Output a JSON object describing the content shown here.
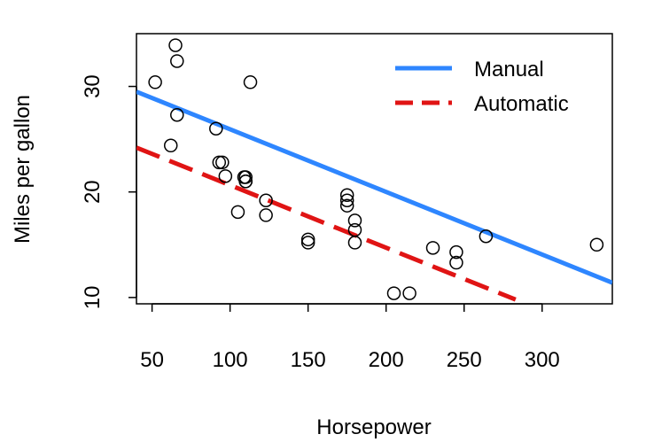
{
  "chart_data": {
    "type": "scatter",
    "xlabel": "Horsepower",
    "ylabel": "Miles per gallon",
    "xlim": [
      40,
      345
    ],
    "ylim": [
      9.4,
      35.0
    ],
    "x_ticks": [
      50,
      100,
      150,
      200,
      250,
      300
    ],
    "y_ticks": [
      10,
      20,
      30
    ],
    "grid": false,
    "legend_position": "top-right",
    "points": [
      {
        "x": 52,
        "y": 30.4
      },
      {
        "x": 62,
        "y": 24.4
      },
      {
        "x": 65,
        "y": 33.9
      },
      {
        "x": 66,
        "y": 32.4
      },
      {
        "x": 66,
        "y": 27.3
      },
      {
        "x": 91,
        "y": 26.0
      },
      {
        "x": 93,
        "y": 22.8
      },
      {
        "x": 95,
        "y": 22.8
      },
      {
        "x": 97,
        "y": 21.5
      },
      {
        "x": 105,
        "y": 18.1
      },
      {
        "x": 109,
        "y": 21.4
      },
      {
        "x": 110,
        "y": 21.0
      },
      {
        "x": 110,
        "y": 21.0
      },
      {
        "x": 110,
        "y": 21.4
      },
      {
        "x": 113,
        "y": 30.4
      },
      {
        "x": 123,
        "y": 19.2
      },
      {
        "x": 123,
        "y": 17.8
      },
      {
        "x": 150,
        "y": 15.5
      },
      {
        "x": 150,
        "y": 15.2
      },
      {
        "x": 175,
        "y": 18.7
      },
      {
        "x": 175,
        "y": 19.2
      },
      {
        "x": 175,
        "y": 19.7
      },
      {
        "x": 180,
        "y": 16.4
      },
      {
        "x": 180,
        "y": 17.3
      },
      {
        "x": 180,
        "y": 15.2
      },
      {
        "x": 205,
        "y": 10.4
      },
      {
        "x": 215,
        "y": 10.4
      },
      {
        "x": 230,
        "y": 14.7
      },
      {
        "x": 245,
        "y": 13.3
      },
      {
        "x": 245,
        "y": 14.3
      },
      {
        "x": 264,
        "y": 15.8
      },
      {
        "x": 335,
        "y": 15.0
      }
    ],
    "series": [
      {
        "name": "Manual",
        "color": "#2E86FF",
        "line_style": "solid",
        "x": [
          40,
          345
        ],
        "y": [
          29.5,
          11.4
        ]
      },
      {
        "name": "Automatic",
        "color": "#E01414",
        "line_style": "dashed",
        "x": [
          40,
          283
        ],
        "y": [
          24.2,
          9.8
        ]
      }
    ]
  }
}
